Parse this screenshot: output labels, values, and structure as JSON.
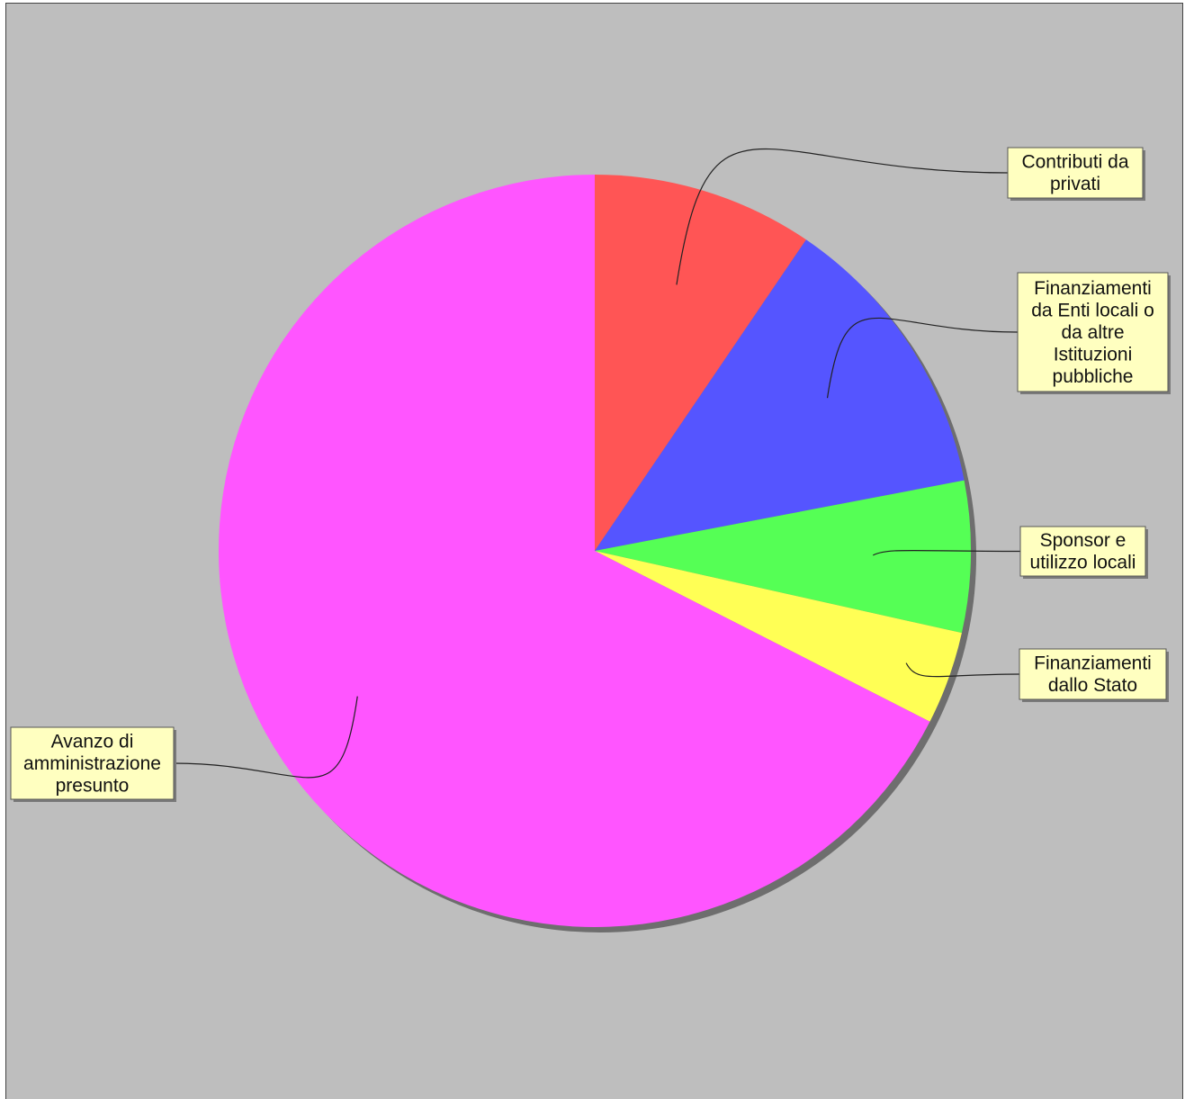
{
  "chart_data": {
    "type": "pie",
    "title": "",
    "start_angle_deg": 0,
    "direction": "clockwise",
    "slices": [
      {
        "label": "Contributi da privati",
        "value": 9.5,
        "color": "#ff5555"
      },
      {
        "label": "Finanziamenti da Enti locali o da altre Istituzioni pubbliche",
        "value": 12.5,
        "color": "#5555ff"
      },
      {
        "label": "Sponsor e utilizzo locali",
        "value": 6.5,
        "color": "#55ff55"
      },
      {
        "label": "Finanziamenti dallo Stato",
        "value": 4.0,
        "color": "#ffff55"
      },
      {
        "label": "Avanzo di amministrazione presunto",
        "value": 67.5,
        "color": "#ff55ff"
      }
    ],
    "label_lines": [
      [
        "Contributi da",
        "privati"
      ],
      [
        "Finanziamenti",
        "da Enti locali o",
        "da altre",
        "Istituzioni",
        "pubbliche"
      ],
      [
        "Sponsor e",
        "utilizzo locali"
      ],
      [
        "Finanziamenti",
        "dallo Stato"
      ],
      [
        "Avanzo di",
        "amministrazione",
        "presunto"
      ]
    ],
    "label_box_color": "#ffffc0",
    "background": "#bebebe"
  }
}
